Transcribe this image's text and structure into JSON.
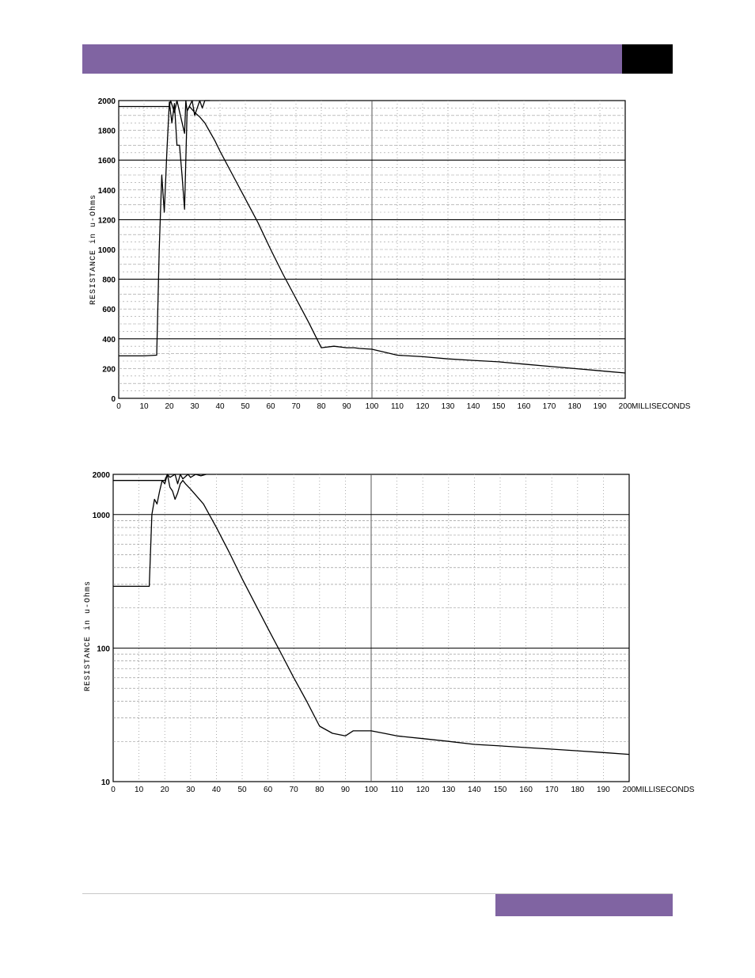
{
  "page": {
    "colors": {
      "accent": "#8064a2",
      "header_box": "#000000",
      "chart_ink": "#000000"
    }
  },
  "chart_data": [
    {
      "type": "line",
      "scale": "linear",
      "xlabel": "MILLISECONDS",
      "ylabel": "RESISTANCE in u-Ohms",
      "xlim": [
        0,
        200
      ],
      "ylim": [
        0,
        2000
      ],
      "x_ticks": [
        "0",
        "10",
        "20",
        "30",
        "40",
        "50",
        "60",
        "70",
        "80",
        "90",
        "100",
        "110",
        "120",
        "130",
        "140",
        "150",
        "160",
        "170",
        "180",
        "190",
        "200"
      ],
      "y_ticks": [
        "0",
        "200",
        "400",
        "600",
        "800",
        "1000",
        "1200",
        "1400",
        "1600",
        "1800",
        "2000"
      ],
      "grid": true,
      "series": [
        {
          "x": [
            0,
            10,
            15,
            16,
            17,
            18,
            19,
            20,
            21,
            22,
            23,
            24,
            25,
            26,
            27,
            28,
            29,
            30,
            32,
            34,
            36,
            38,
            40,
            45,
            50,
            55,
            60,
            65,
            70,
            75,
            80,
            85,
            90,
            93,
            95,
            100,
            105,
            110,
            120,
            130,
            140,
            150,
            160,
            170,
            180,
            190,
            200
          ],
          "y": [
            285,
            285,
            290,
            1000,
            1500,
            1250,
            1650,
            1990,
            1850,
            1980,
            1700,
            1700,
            1500,
            1270,
            1930,
            1960,
            1940,
            1920,
            1890,
            1850,
            1790,
            1730,
            1660,
            1500,
            1340,
            1180,
            1000,
            830,
            670,
            510,
            340,
            350,
            340,
            340,
            335,
            330,
            310,
            290,
            280,
            265,
            255,
            245,
            230,
            215,
            200,
            185,
            170
          ]
        },
        {
          "x": [
            0,
            20,
            20.5,
            22,
            23,
            26,
            26.5,
            27,
            29,
            30,
            32,
            33,
            34,
            36
          ],
          "y": [
            1960,
            1960,
            2000,
            1920,
            2000,
            1780,
            2000,
            1930,
            2000,
            1900,
            2000,
            1950,
            2000,
            2000
          ]
        }
      ]
    },
    {
      "type": "line",
      "scale": "log",
      "xlabel": "MILLISECONDS",
      "ylabel": "RESISTANCE in u-Ohms",
      "xlim": [
        0,
        200
      ],
      "ylim": [
        10,
        2000
      ],
      "x_ticks": [
        "0",
        "10",
        "20",
        "30",
        "40",
        "50",
        "60",
        "70",
        "80",
        "90",
        "100",
        "110",
        "120",
        "130",
        "140",
        "150",
        "160",
        "170",
        "180",
        "190",
        "200"
      ],
      "y_ticks": [
        "10",
        "100",
        "1000",
        "2000"
      ],
      "grid": true,
      "series": [
        {
          "x": [
            0,
            10,
            14,
            15,
            16,
            17,
            18,
            19,
            20,
            21,
            22,
            23,
            24,
            25,
            26,
            27,
            28,
            30,
            35,
            40,
            45,
            50,
            55,
            60,
            65,
            70,
            75,
            80,
            85,
            90,
            93,
            95,
            100,
            105,
            110,
            120,
            130,
            140,
            150,
            160,
            170,
            180,
            190,
            200
          ],
          "y": [
            290,
            290,
            290,
            1000,
            1300,
            1200,
            1500,
            1800,
            1700,
            2000,
            1600,
            1500,
            1300,
            1450,
            1700,
            1800,
            1700,
            1550,
            1200,
            800,
            520,
            330,
            215,
            140,
            92,
            60,
            40,
            26,
            23,
            22,
            24,
            24,
            24,
            23,
            22,
            21,
            20,
            19,
            18.5,
            18,
            17.5,
            17,
            16.5,
            16
          ]
        },
        {
          "x": [
            0,
            20,
            21,
            22,
            24,
            25,
            26,
            27,
            29,
            30,
            32,
            34,
            36
          ],
          "y": [
            1800,
            1800,
            2000,
            1900,
            2000,
            1700,
            2000,
            1850,
            2000,
            1900,
            2000,
            1950,
            2000
          ]
        }
      ]
    }
  ]
}
